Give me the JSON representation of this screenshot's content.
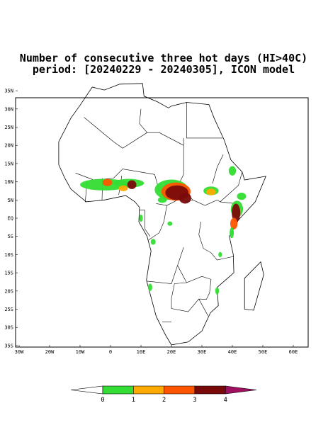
{
  "title": [
    "Number of consecutive three hot days (HI>40C)",
    "period: [20240229 - 20240305], ICON model"
  ],
  "lat_ticks": [
    {
      "value": 35,
      "label": "35N"
    },
    {
      "value": 30,
      "label": "30N"
    },
    {
      "value": 25,
      "label": "25N"
    },
    {
      "value": 20,
      "label": "20N"
    },
    {
      "value": 15,
      "label": "15N"
    },
    {
      "value": 10,
      "label": "10N"
    },
    {
      "value": 5,
      "label": "5N"
    },
    {
      "value": 0,
      "label": "EQ"
    },
    {
      "value": -5,
      "label": "5S"
    },
    {
      "value": -10,
      "label": "10S"
    },
    {
      "value": -15,
      "label": "15S"
    },
    {
      "value": -20,
      "label": "20S"
    },
    {
      "value": -25,
      "label": "25S"
    },
    {
      "value": -30,
      "label": "30S"
    },
    {
      "value": -35,
      "label": "35S"
    }
  ],
  "lon_ticks": [
    {
      "value": -30,
      "label": "30W"
    },
    {
      "value": -20,
      "label": "20W"
    },
    {
      "value": -10,
      "label": "10W"
    },
    {
      "value": 0,
      "label": "0"
    },
    {
      "value": 10,
      "label": "10E"
    },
    {
      "value": 20,
      "label": "20E"
    },
    {
      "value": 30,
      "label": "30E"
    },
    {
      "value": 40,
      "label": "40E"
    },
    {
      "value": 50,
      "label": "50E"
    },
    {
      "value": 60,
      "label": "60E"
    }
  ],
  "colorbar": {
    "levels": [
      0,
      1,
      2,
      3,
      4
    ],
    "colors": [
      "#ffffff",
      "#33dd33",
      "#ffaa00",
      "#ff5500",
      "#7a0a0a",
      "#a01060"
    ]
  }
}
